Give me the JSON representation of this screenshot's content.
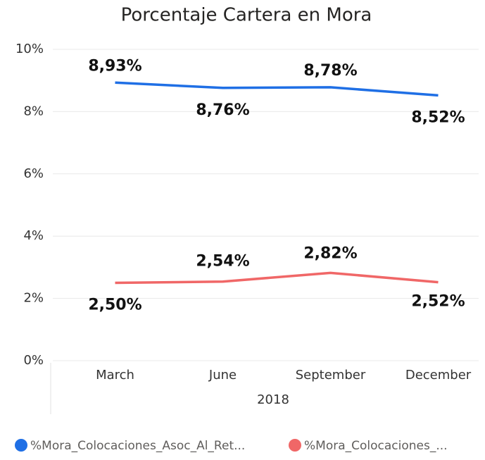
{
  "chart_data": {
    "type": "line",
    "title": "Porcentaje Cartera en Mora",
    "categories": [
      "March",
      "June",
      "September",
      "December"
    ],
    "x_label": "2018",
    "series": [
      {
        "name": "%Mora_Colocaciones_Asoc_Al_Ret...",
        "color": "#1f6fe5",
        "values": [
          8.93,
          8.76,
          8.78,
          8.52
        ],
        "value_labels": [
          "8,93%",
          "8,76%",
          "8,78%",
          "8,52%"
        ]
      },
      {
        "name": "%Mora_Colocaciones_...",
        "color": "#f06767",
        "values": [
          2.5,
          2.54,
          2.82,
          2.52
        ],
        "value_labels": [
          "2,50%",
          "2,54%",
          "2,82%",
          "2,52%"
        ]
      }
    ],
    "ylim": [
      0,
      10
    ],
    "yticks": [
      {
        "value": 0,
        "label": "0%"
      },
      {
        "value": 2,
        "label": "2%"
      },
      {
        "value": 4,
        "label": "4%"
      },
      {
        "value": 6,
        "label": "6%"
      },
      {
        "value": 8,
        "label": "8%"
      },
      {
        "value": 10,
        "label": "10%"
      }
    ],
    "grid": true
  }
}
